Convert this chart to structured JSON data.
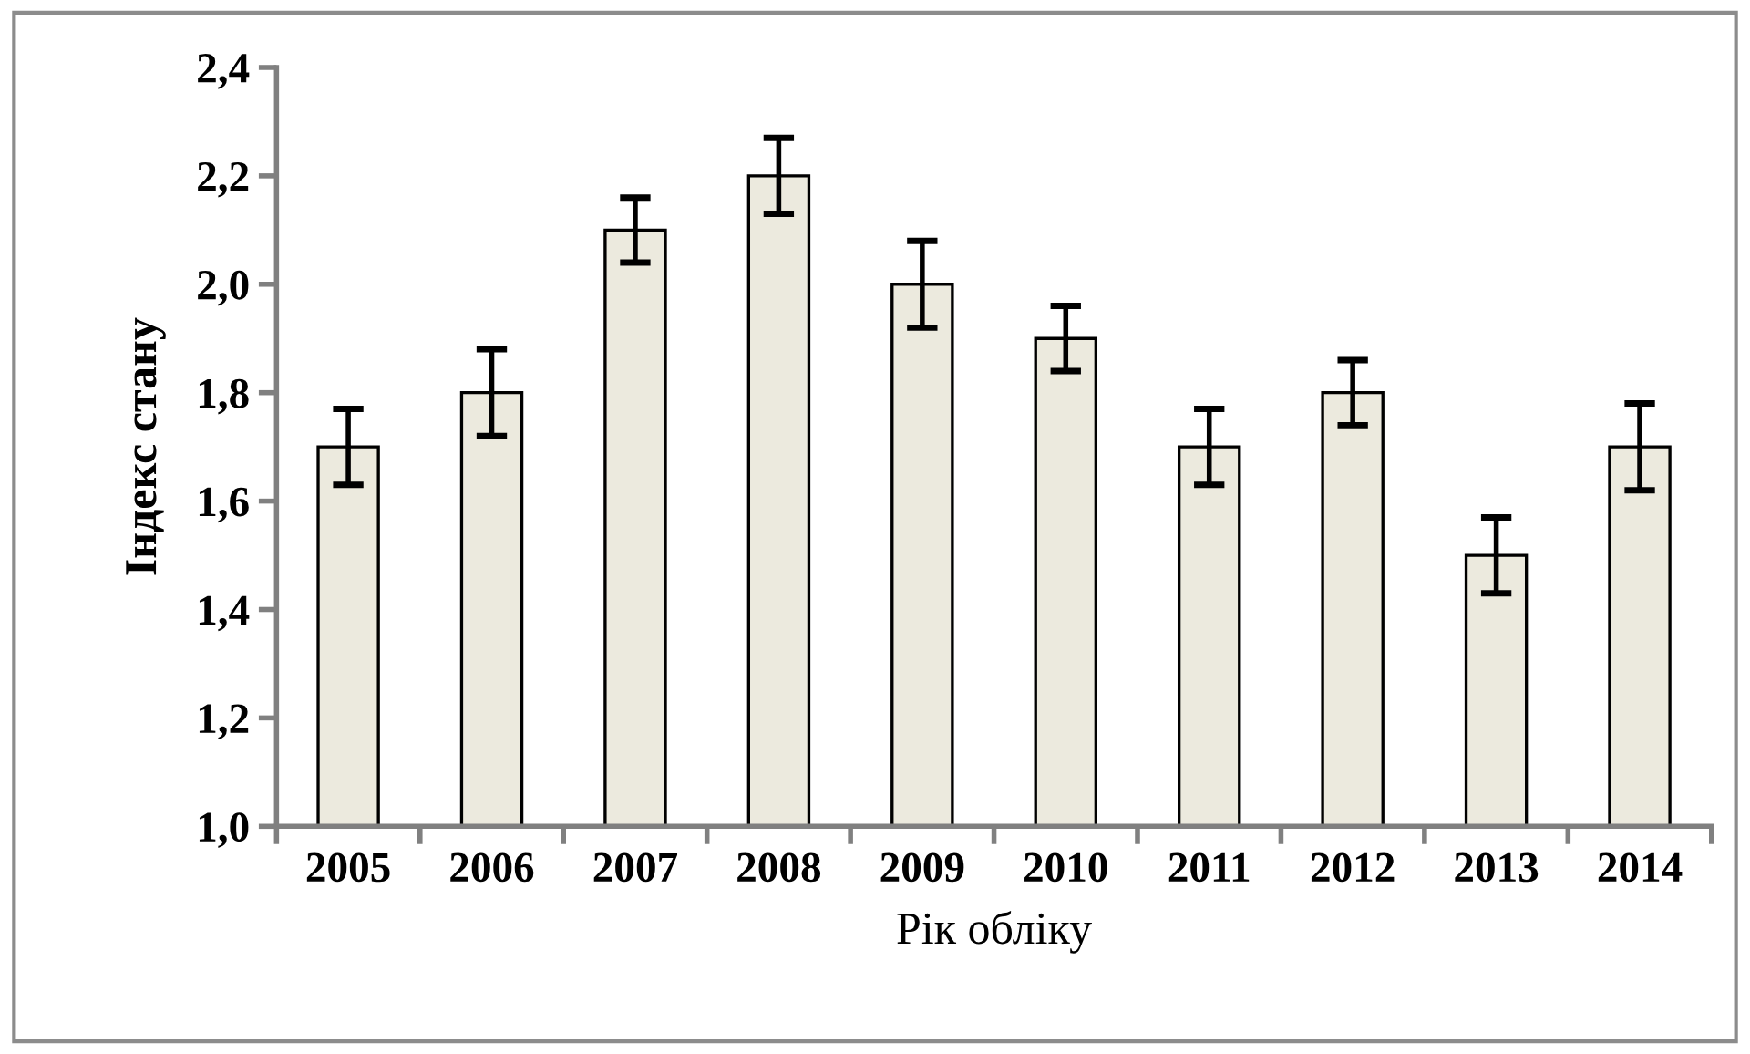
{
  "chart_data": {
    "type": "bar",
    "xlabel": "Рік обліку",
    "ylabel": "Індекс стану",
    "categories": [
      "2005",
      "2006",
      "2007",
      "2008",
      "2009",
      "2010",
      "2011",
      "2012",
      "2013",
      "2014"
    ],
    "values": [
      1.7,
      1.8,
      2.1,
      2.2,
      2.0,
      1.9,
      1.7,
      1.8,
      1.5,
      1.7
    ],
    "errors": [
      0.07,
      0.08,
      0.06,
      0.07,
      0.08,
      0.06,
      0.07,
      0.06,
      0.07,
      0.08
    ],
    "color": "#eceade",
    "ylim": [
      1.0,
      2.4
    ],
    "yticks": [
      {
        "value": 1.0,
        "label": "1,0"
      },
      {
        "value": 1.2,
        "label": "1,2"
      },
      {
        "value": 1.4,
        "label": "1,4"
      },
      {
        "value": 1.6,
        "label": "1,6"
      },
      {
        "value": 1.8,
        "label": "1,8"
      },
      {
        "value": 2.0,
        "label": "2,0"
      },
      {
        "value": 2.2,
        "label": "2,2"
      },
      {
        "value": 2.4,
        "label": "2,4"
      }
    ],
    "grid": false,
    "legend": false
  }
}
